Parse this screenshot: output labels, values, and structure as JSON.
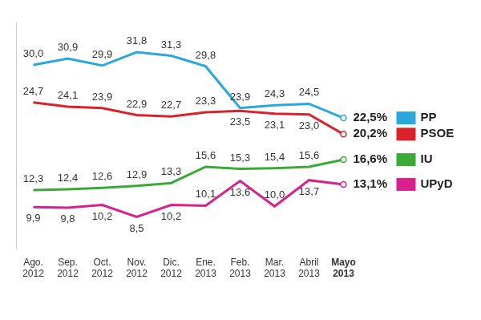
{
  "chart_data": {
    "type": "line",
    "categories": [
      "Ago. 2012",
      "Sep. 2012",
      "Oct. 2012",
      "Nov. 2012",
      "Dic. 2012",
      "Ene. 2013",
      "Feb. 2013",
      "Mar. 2013",
      "Abril 2013",
      "Mayo 2013"
    ],
    "series": [
      {
        "name": "PP",
        "color": "#29a8e0",
        "values": [
          30.0,
          30.9,
          29.9,
          31.8,
          31.3,
          29.8,
          23.9,
          24.3,
          24.5,
          22.5
        ],
        "value_labels": [
          "30,0",
          "30,9",
          "29,9",
          "31,8",
          "31,3",
          "29,8",
          "23,9",
          "24,3",
          "24,5",
          "22,5%"
        ]
      },
      {
        "name": "PSOE",
        "color": "#d9222a",
        "values": [
          24.7,
          24.1,
          23.9,
          22.9,
          22.7,
          23.3,
          23.5,
          23.1,
          23.0,
          20.2
        ],
        "value_labels": [
          "24,7",
          "24,1",
          "23,9",
          "22,9",
          "22,7",
          "23,3",
          "23,5",
          "23,1",
          "23,0",
          "20,2%"
        ]
      },
      {
        "name": "IU",
        "color": "#3aaa35",
        "values": [
          12.3,
          12.4,
          12.6,
          12.9,
          13.3,
          15.6,
          15.3,
          15.4,
          15.6,
          16.6
        ],
        "value_labels": [
          "12,3",
          "12,4",
          "12,6",
          "12,9",
          "13,3",
          "15,6",
          "15,3",
          "15,4",
          "15,6",
          "16,6%"
        ]
      },
      {
        "name": "UPyD",
        "color": "#d6218f",
        "values": [
          9.9,
          9.8,
          10.2,
          8.5,
          10.2,
          10.1,
          13.6,
          10.0,
          13.7,
          13.1
        ],
        "value_labels": [
          "9,9",
          "9,8",
          "10,2",
          "8,5",
          "10,2",
          "10,1",
          "13,6",
          "10,0",
          "13,7",
          "13,1%"
        ]
      }
    ],
    "ylim": [
      4,
      36
    ],
    "grid": false,
    "legend": "right",
    "data_labels": true,
    "tick_labels": "x"
  }
}
